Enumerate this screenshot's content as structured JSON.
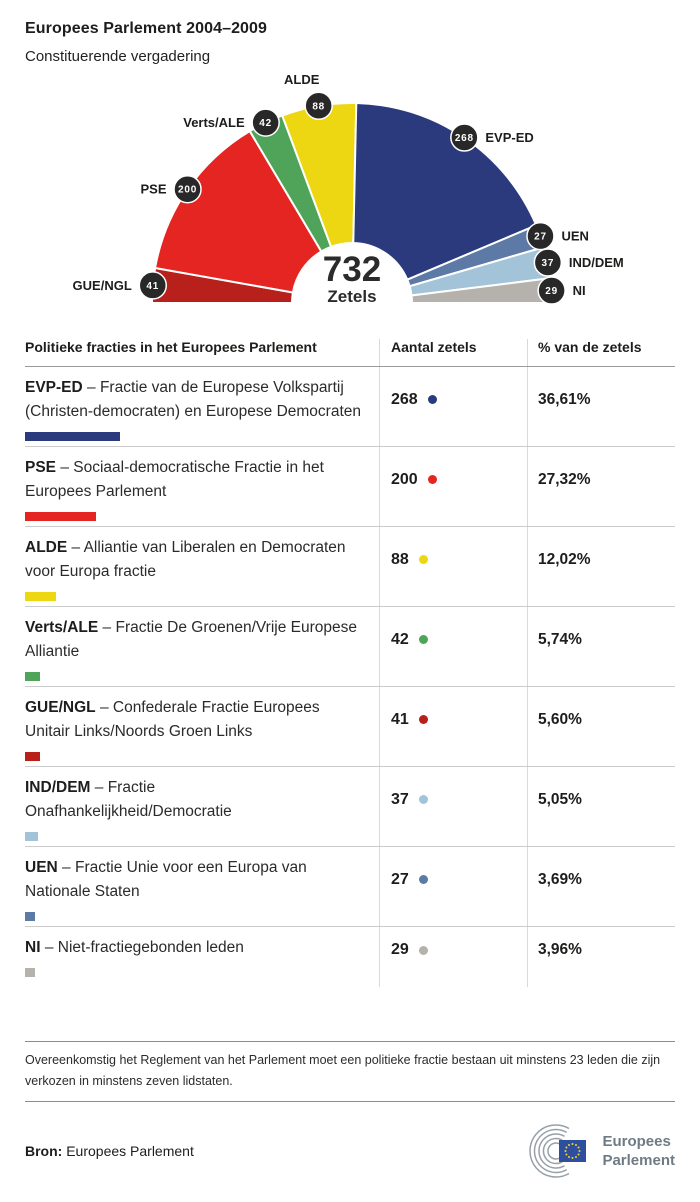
{
  "header": {
    "title": "Europees Parlement 2004–2009",
    "subtitle": "Constituerende vergadering"
  },
  "chart_data": {
    "type": "hemicycle-half-donut",
    "title": "Europees Parlement 2004–2009 — Constituerende vergadering",
    "total": 732,
    "total_sublabel": "Zetels",
    "order_left_to_right": [
      "GUE/NGL",
      "PSE",
      "Verts/ALE",
      "ALDE",
      "EVP-ED",
      "UEN",
      "IND/DEM",
      "NI"
    ],
    "series": [
      {
        "name": "GUE/NGL",
        "seats": 41,
        "color": "#b7201b"
      },
      {
        "name": "PSE",
        "seats": 200,
        "color": "#e52521"
      },
      {
        "name": "Verts/ALE",
        "seats": 42,
        "color": "#4fa45a"
      },
      {
        "name": "ALDE",
        "seats": 88,
        "color": "#ecd712"
      },
      {
        "name": "EVP-ED",
        "seats": 268,
        "color": "#2a3a7d"
      },
      {
        "name": "UEN",
        "seats": 27,
        "color": "#5d79a6"
      },
      {
        "name": "IND/DEM",
        "seats": 37,
        "color": "#a3c3d9"
      },
      {
        "name": "NI",
        "seats": 29,
        "color": "#b5b2ad"
      }
    ],
    "badge_color": "#282828",
    "legend_position": "around-arc",
    "grid": false
  },
  "table": {
    "dash": "–",
    "headers": [
      "Politieke fracties in het Europees Parlement",
      "Aantal zetels",
      "% van de zetels"
    ],
    "rows": [
      {
        "abbr": "EVP-ED",
        "desc": "Fractie van de Europese Volkspartij (Christen-democraten) en Europese Democraten",
        "seats": 268,
        "percent": "36,61%",
        "color": "#2a3a7d"
      },
      {
        "abbr": "PSE",
        "desc": "Sociaal-democratische Fractie in het Europees Parlement",
        "seats": 200,
        "percent": "27,32%",
        "color": "#e52521"
      },
      {
        "abbr": "ALDE",
        "desc": "Alliantie van Liberalen en Democraten voor Europa fractie",
        "seats": 88,
        "percent": "12,02%",
        "color": "#ecd712"
      },
      {
        "abbr": "Verts/ALE",
        "desc": "Fractie De Groenen/Vrije Europese Alliantie",
        "seats": 42,
        "percent": "5,74%",
        "color": "#4fa45a"
      },
      {
        "abbr": "GUE/NGL",
        "desc": "Confederale Fractie Europees Unitair Links/Noords Groen Links",
        "seats": 41,
        "percent": "5,60%",
        "color": "#b7201b"
      },
      {
        "abbr": "IND/DEM",
        "desc": "Fractie Onafhankelijkheid/Democratie",
        "seats": 37,
        "percent": "5,05%",
        "color": "#a3c3d9"
      },
      {
        "abbr": "UEN",
        "desc": "Fractie Unie voor een Europa van Nationale Staten",
        "seats": 27,
        "percent": "3,69%",
        "color": "#5d79a6"
      },
      {
        "abbr": "NI",
        "desc": "Niet-fractiegebonden leden",
        "seats": 29,
        "percent": "3,96%",
        "color": "#b5b2ad"
      }
    ]
  },
  "footer": {
    "note": "Overeenkomstig het Reglement van het Parlement moet een politieke fractie bestaan uit minstens 23 leden die zijn verkozen in minstens zeven lidstaten.",
    "source_label": "Bron:",
    "source_value": "Europees Parlement",
    "logo_line1": "Europees",
    "logo_line2": "Parlement",
    "logo_flag_color": "#2e4f9e",
    "logo_star_color": "#f8d12e",
    "logo_arc_color": "#97a0a8"
  }
}
